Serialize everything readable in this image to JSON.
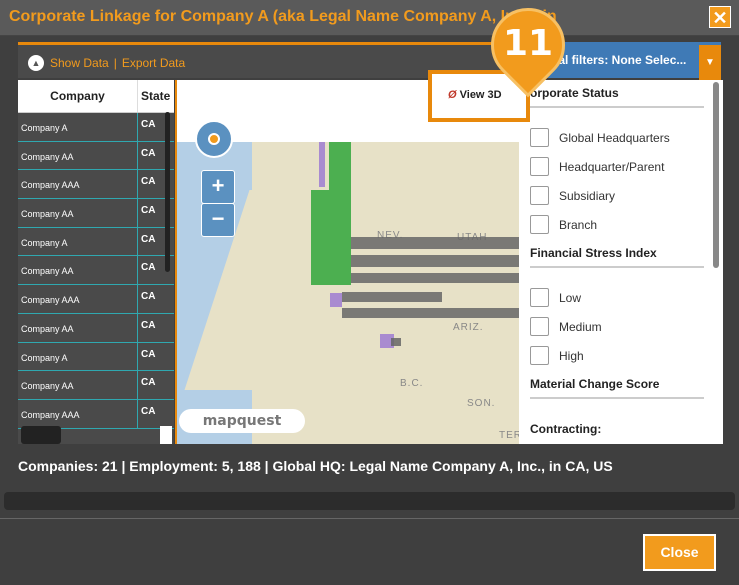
{
  "window": {
    "title": "Corporate Linkage for Company A (aka Legal Name Company A, Inc.), in",
    "close_icon": "close-icon"
  },
  "toolbar": {
    "show_data": "Show Data",
    "separator": "|",
    "export_data": "Export Data",
    "filters_label": "ial filters: None Selec..."
  },
  "table": {
    "headers": {
      "company": "Company",
      "state": "State"
    },
    "rows": [
      {
        "company": "Company A",
        "state": "CA"
      },
      {
        "company": "Company AA",
        "state": "CA"
      },
      {
        "company": "Company AAA",
        "state": "CA"
      },
      {
        "company": "Company AA",
        "state": "CA"
      },
      {
        "company": "Company A",
        "state": "CA"
      },
      {
        "company": "Company AA",
        "state": "CA"
      },
      {
        "company": "Company AAA",
        "state": "CA"
      },
      {
        "company": "Company AA",
        "state": "CA"
      },
      {
        "company": "Company A",
        "state": "CA"
      },
      {
        "company": "Company AA",
        "state": "CA"
      },
      {
        "company": "Company AAA",
        "state": "CA"
      }
    ]
  },
  "map": {
    "labels": {
      "nev": "NEV.",
      "utah": "UTAH",
      "ariz": "ARIZ.",
      "bc": "B.C.",
      "son": "SON.",
      "ter": "TER"
    },
    "zoom_in": "+",
    "zoom_out": "−",
    "brand": "mapquest",
    "view3d_label": "View 3D",
    "view3d_icon": "Ø"
  },
  "marker": {
    "number": "11"
  },
  "filters": {
    "corporate_status": {
      "title": "orporate Status",
      "items": [
        "Global Headquarters",
        "Headquarter/Parent",
        "Subsidiary",
        "Branch"
      ]
    },
    "financial_stress": {
      "title": "Financial Stress Index",
      "items": [
        "Low",
        "Medium",
        "High"
      ]
    },
    "material_change": {
      "title": "Material Change Score"
    },
    "contracting": {
      "title": "Contracting:"
    }
  },
  "summary": "Companies: 21 | Employment: 5, 188 | Global HQ: Legal Name Company A, Inc., in CA, US",
  "footer": {
    "close_label": "Close"
  },
  "colors": {
    "accent": "#f29b1d",
    "filter_blue": "#3f7ab6",
    "teal_divider": "#2fa8b0"
  }
}
